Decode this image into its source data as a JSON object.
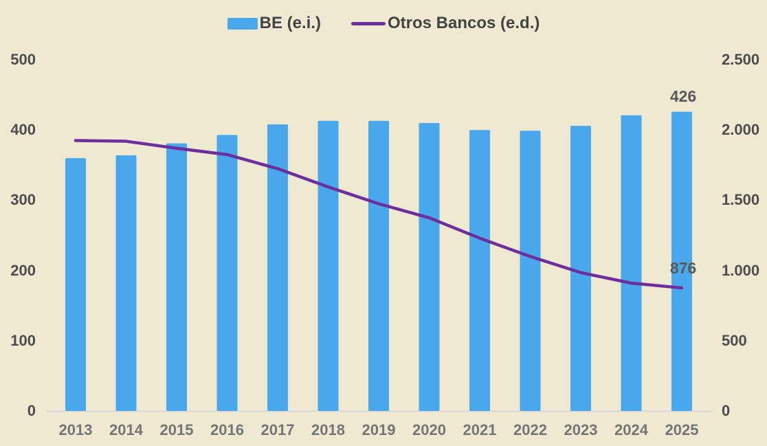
{
  "legend": {
    "items": [
      {
        "label": "BE (e.i.)",
        "type": "bar",
        "color": "#49A7EC"
      },
      {
        "label": "Otros Bancos (e.d.)",
        "type": "line",
        "color": "#6E2F9E"
      }
    ]
  },
  "colors": {
    "background": "#F0E9D2",
    "bar": "#49A7EC",
    "line": "#6E2F9E",
    "baseline": "#D9D9D9",
    "tick_text": "#4D4D4D",
    "xlabel_text": "#757575",
    "annotation_text": "#595959"
  },
  "chart_data": {
    "type": "bar",
    "subtype": "bar-and-line-combo",
    "categories": [
      "2013",
      "2014",
      "2015",
      "2016",
      "2017",
      "2018",
      "2019",
      "2020",
      "2021",
      "2022",
      "2023",
      "2024",
      "2025"
    ],
    "series": [
      {
        "name": "BE (e.i.)",
        "type": "bar",
        "axis": "left",
        "color": "#49A7EC",
        "values": [
          360,
          364,
          381,
          393,
          408,
          413,
          413,
          410,
          400,
          399,
          406,
          421,
          426
        ]
      },
      {
        "name": "Otros Bancos (e.d.)",
        "type": "line",
        "axis": "right",
        "color": "#6E2F9E",
        "values": [
          1925,
          1920,
          1870,
          1825,
          1725,
          1595,
          1475,
          1375,
          1230,
          1100,
          985,
          910,
          876
        ]
      }
    ],
    "left_axis": {
      "min": 0,
      "max": 500,
      "ticks": [
        "0",
        "100",
        "200",
        "300",
        "400",
        "500"
      ]
    },
    "right_axis": {
      "min": 0,
      "max": 2500,
      "ticks": [
        "0",
        "500",
        "1.000",
        "1.500",
        "2.000",
        "2.500"
      ]
    },
    "annotations": [
      {
        "text": "426",
        "series": "BE (e.i.)",
        "category": "2025",
        "value": 426
      },
      {
        "text": "876",
        "series": "Otros Bancos (e.d.)",
        "category": "2025",
        "value": 876
      }
    ],
    "title": "",
    "grid": false,
    "legend_position": "top-center"
  }
}
